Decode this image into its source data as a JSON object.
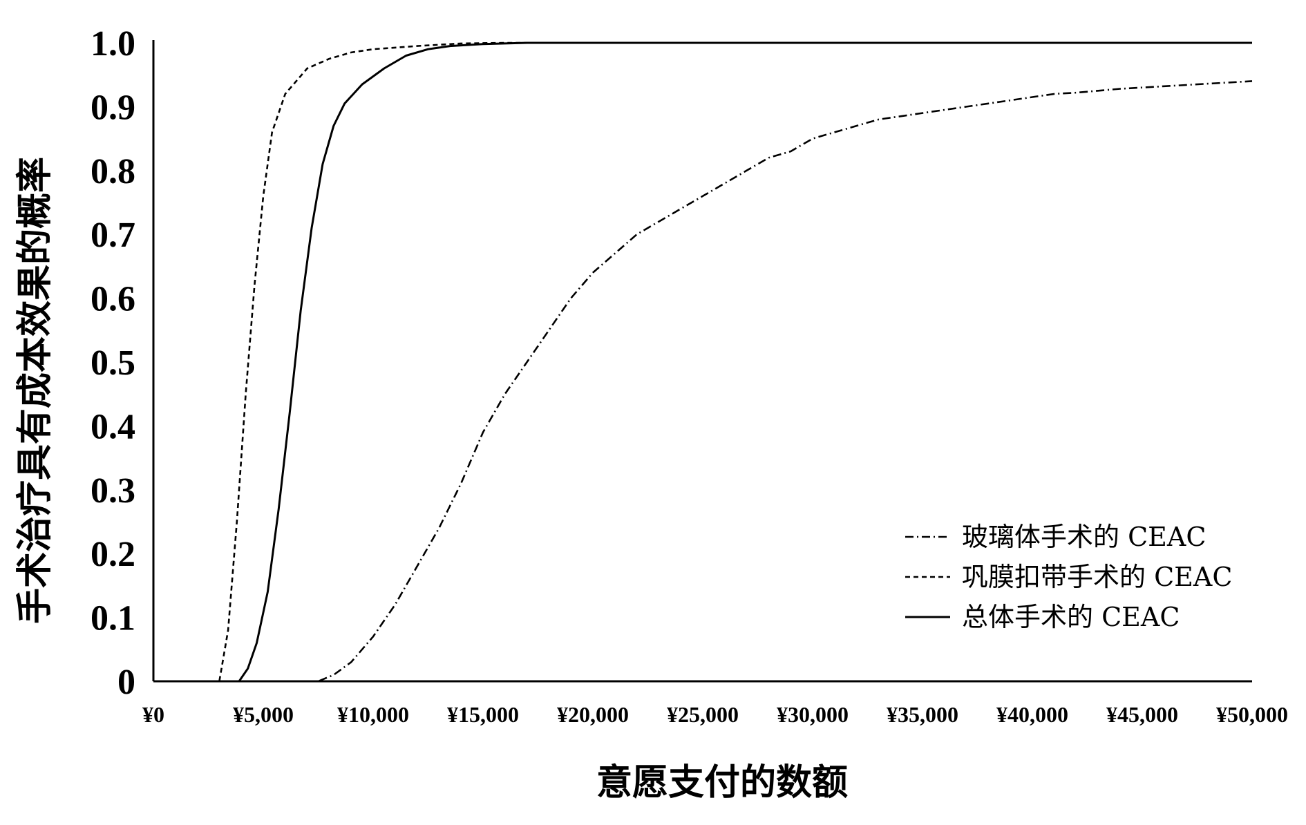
{
  "chart_data": {
    "type": "line",
    "xlabel": "意愿支付的数额",
    "ylabel": "手术治疗具有成本效果的概率",
    "xlim": [
      0,
      50000
    ],
    "ylim": [
      0,
      1
    ],
    "x_tick_labels": [
      "¥0",
      "¥5,000",
      "¥10,000",
      "¥15,000",
      "¥20,000",
      "¥25,000",
      "¥30,000",
      "¥35,000",
      "¥40,000",
      "¥45,000",
      "¥50,000"
    ],
    "y_tick_labels": [
      "0",
      "0.1",
      "0.2",
      "0.3",
      "0.4",
      "0.5",
      "0.6",
      "0.7",
      "0.8",
      "0.9",
      "1.0"
    ],
    "grid": false,
    "legend_position": "bottom-right",
    "series": [
      {
        "name": "玻璃体手术的 CEAC",
        "style": "dash-dot",
        "color": "#000000",
        "points": [
          [
            0,
            0
          ],
          [
            6500,
            0
          ],
          [
            7500,
            0
          ],
          [
            8200,
            0.01
          ],
          [
            9000,
            0.03
          ],
          [
            10000,
            0.07
          ],
          [
            11000,
            0.12
          ],
          [
            12000,
            0.18
          ],
          [
            13000,
            0.24
          ],
          [
            14000,
            0.31
          ],
          [
            15000,
            0.39
          ],
          [
            16000,
            0.45
          ],
          [
            17000,
            0.5
          ],
          [
            18000,
            0.55
          ],
          [
            19000,
            0.6
          ],
          [
            20000,
            0.64
          ],
          [
            21000,
            0.67
          ],
          [
            22000,
            0.7
          ],
          [
            23000,
            0.72
          ],
          [
            24000,
            0.74
          ],
          [
            25000,
            0.76
          ],
          [
            26000,
            0.78
          ],
          [
            27000,
            0.8
          ],
          [
            28000,
            0.82
          ],
          [
            29000,
            0.83
          ],
          [
            30000,
            0.85
          ],
          [
            31000,
            0.86
          ],
          [
            32000,
            0.87
          ],
          [
            33000,
            0.88
          ],
          [
            34000,
            0.885
          ],
          [
            35000,
            0.89
          ],
          [
            36000,
            0.895
          ],
          [
            37000,
            0.9
          ],
          [
            38000,
            0.905
          ],
          [
            39000,
            0.91
          ],
          [
            40000,
            0.915
          ],
          [
            41000,
            0.92
          ],
          [
            42000,
            0.922
          ],
          [
            43000,
            0.925
          ],
          [
            44000,
            0.928
          ],
          [
            45000,
            0.93
          ],
          [
            46000,
            0.932
          ],
          [
            47000,
            0.934
          ],
          [
            48000,
            0.936
          ],
          [
            49000,
            0.938
          ],
          [
            50000,
            0.94
          ]
        ]
      },
      {
        "name": "巩膜扣带手术的 CEAC",
        "style": "dashed",
        "color": "#000000",
        "points": [
          [
            0,
            0
          ],
          [
            3000,
            0
          ],
          [
            3400,
            0.08
          ],
          [
            3800,
            0.25
          ],
          [
            4200,
            0.45
          ],
          [
            4600,
            0.62
          ],
          [
            5000,
            0.76
          ],
          [
            5400,
            0.86
          ],
          [
            6000,
            0.92
          ],
          [
            7000,
            0.96
          ],
          [
            8000,
            0.975
          ],
          [
            9000,
            0.985
          ],
          [
            10000,
            0.99
          ],
          [
            12000,
            0.995
          ],
          [
            14000,
            0.999
          ],
          [
            16000,
            1.0
          ],
          [
            50000,
            1.0
          ]
        ]
      },
      {
        "name": "总体手术的 CEAC",
        "style": "solid",
        "color": "#000000",
        "points": [
          [
            0,
            0
          ],
          [
            3900,
            0
          ],
          [
            4300,
            0.02
          ],
          [
            4700,
            0.06
          ],
          [
            5200,
            0.14
          ],
          [
            5700,
            0.27
          ],
          [
            6200,
            0.42
          ],
          [
            6700,
            0.58
          ],
          [
            7200,
            0.71
          ],
          [
            7700,
            0.81
          ],
          [
            8200,
            0.87
          ],
          [
            8700,
            0.905
          ],
          [
            9500,
            0.935
          ],
          [
            10500,
            0.96
          ],
          [
            11500,
            0.98
          ],
          [
            12500,
            0.99
          ],
          [
            13500,
            0.995
          ],
          [
            15000,
            0.998
          ],
          [
            17000,
            1.0
          ],
          [
            50000,
            1.0
          ]
        ]
      }
    ]
  }
}
